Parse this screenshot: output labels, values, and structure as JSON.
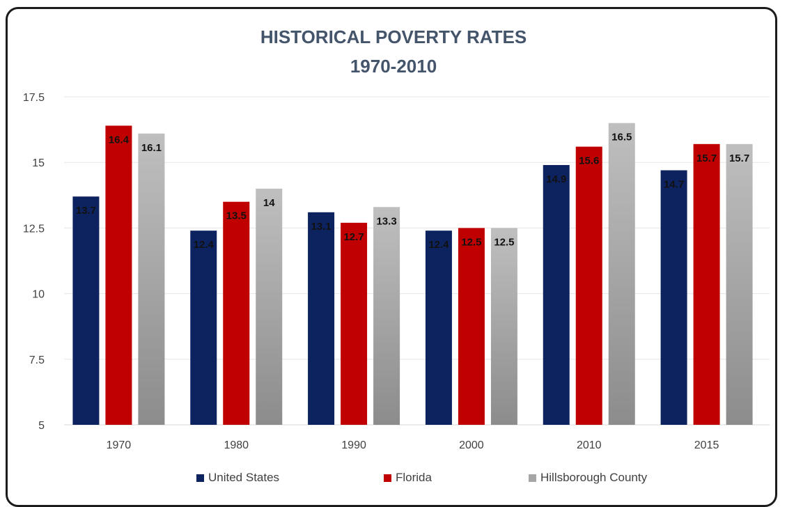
{
  "chart_data": {
    "type": "bar",
    "title": "HISTORICAL POVERTY RATES",
    "subtitle": "1970-2010",
    "categories": [
      "1970",
      "1980",
      "1990",
      "2000",
      "2010",
      "2015"
    ],
    "series": [
      {
        "name": "United States",
        "color": "#0d2360",
        "values": [
          13.7,
          12.4,
          13.1,
          12.4,
          14.9,
          14.7
        ],
        "labels": [
          "13.7",
          "12.4",
          "13.1",
          "12.4",
          "14.9",
          "14.7"
        ]
      },
      {
        "name": "Florida",
        "color": "#c00000",
        "values": [
          16.4,
          13.5,
          12.7,
          12.5,
          15.6,
          15.7
        ],
        "labels": [
          "16.4",
          "13.5",
          "12.7",
          "12.5",
          "15.6",
          "15.7"
        ]
      },
      {
        "name": "Hillsborough County",
        "color": "#a6a6a6",
        "values": [
          16.1,
          14,
          13.3,
          12.5,
          16.5,
          15.7
        ],
        "labels": [
          "16.1",
          "14",
          "13.3",
          "12.5",
          "16.5",
          "15.7"
        ]
      }
    ],
    "ylim": [
      5,
      17.5
    ],
    "yticks": [
      "5",
      "7.5",
      "10",
      "12.5",
      "15",
      "17.5"
    ],
    "grid": true,
    "legend_position": "bottom"
  }
}
